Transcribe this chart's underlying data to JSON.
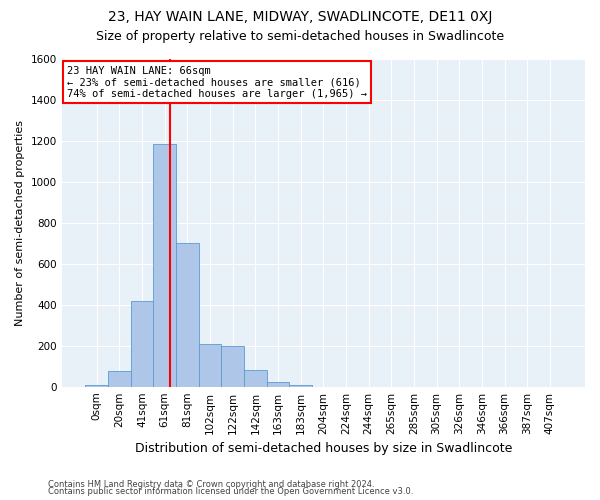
{
  "title": "23, HAY WAIN LANE, MIDWAY, SWADLINCOTE, DE11 0XJ",
  "subtitle": "Size of property relative to semi-detached houses in Swadlincote",
  "xlabel": "Distribution of semi-detached houses by size in Swadlincote",
  "ylabel": "Number of semi-detached properties",
  "footnote1": "Contains HM Land Registry data © Crown copyright and database right 2024.",
  "footnote2": "Contains public sector information licensed under the Open Government Licence v3.0.",
  "bar_labels": [
    "0sqm",
    "20sqm",
    "41sqm",
    "61sqm",
    "81sqm",
    "102sqm",
    "122sqm",
    "142sqm",
    "163sqm",
    "183sqm",
    "204sqm",
    "224sqm",
    "244sqm",
    "265sqm",
    "285sqm",
    "305sqm",
    "326sqm",
    "346sqm",
    "366sqm",
    "387sqm",
    "407sqm"
  ],
  "bar_values": [
    10,
    75,
    420,
    1185,
    700,
    210,
    200,
    80,
    25,
    10,
    0,
    0,
    0,
    0,
    0,
    0,
    0,
    0,
    0,
    0,
    0
  ],
  "bar_color": "#aec6e8",
  "bar_edge_color": "#5b9bd5",
  "vline_x": 3.25,
  "vline_color": "red",
  "annotation_text": "23 HAY WAIN LANE: 66sqm\n← 23% of semi-detached houses are smaller (616)\n74% of semi-detached houses are larger (1,965) →",
  "ylim": [
    0,
    1600
  ],
  "yticks": [
    0,
    200,
    400,
    600,
    800,
    1000,
    1200,
    1400,
    1600
  ],
  "bg_color": "#e8f0f8",
  "title_fontsize": 10,
  "subtitle_fontsize": 9,
  "ylabel_fontsize": 8,
  "xlabel_fontsize": 9,
  "tick_fontsize": 7.5,
  "annotation_fontsize": 7.5,
  "footnote_fontsize": 6
}
